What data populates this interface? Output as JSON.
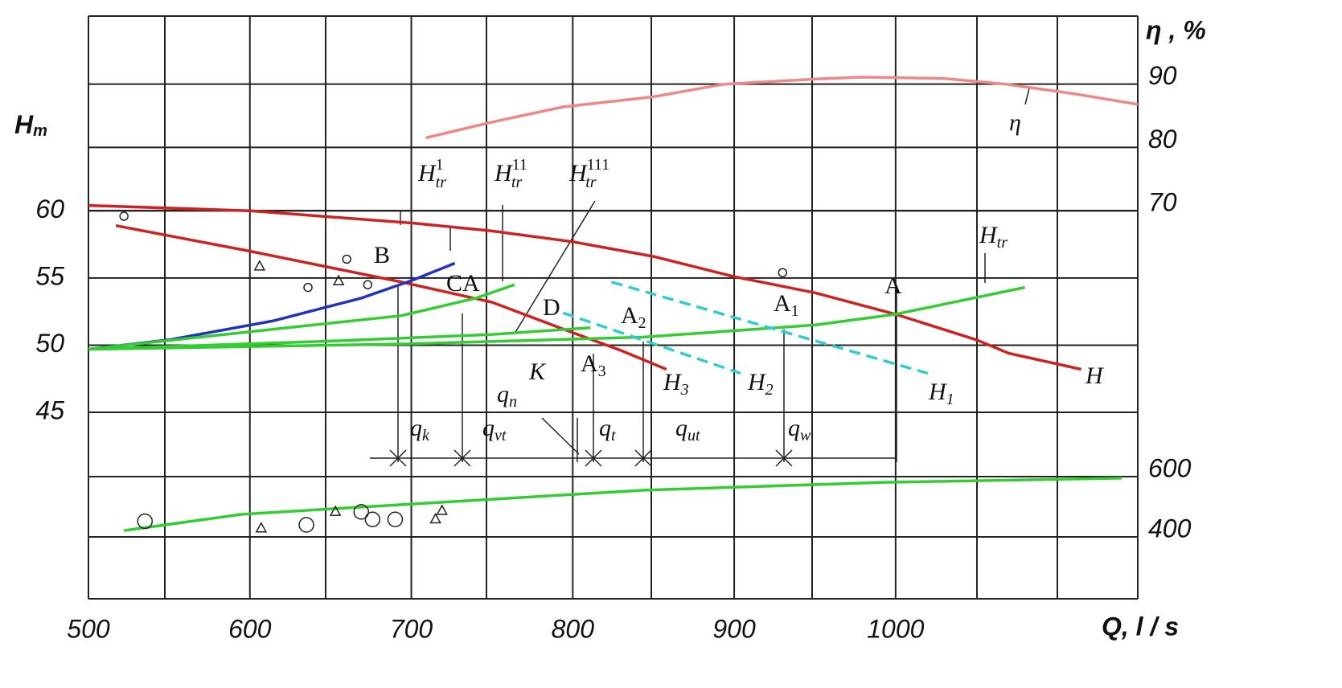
{
  "chart_data": {
    "type": "line",
    "x_label": "Q, l / s",
    "y_label": {
      "text": "H",
      "sub": "m"
    },
    "y2_label": "η , %",
    "xlim": [
      500,
      1150
    ],
    "xticks": [
      500,
      600,
      700,
      800,
      900,
      1000
    ],
    "ylim": [
      45,
      74.5
    ],
    "yticks": [
      60,
      55,
      50,
      45
    ],
    "y2lim": [
      70,
      100
    ],
    "y2ticks": [
      90,
      80,
      70
    ],
    "y3lim": [
      200,
      800
    ],
    "y3ticks": [
      600,
      400
    ],
    "series": [
      {
        "color": "#cc2222",
        "axis": "y",
        "x": [
          500,
          600,
          700,
          750,
          800,
          850,
          900,
          950,
          1000,
          1050,
          1070,
          1115
        ],
        "values": [
          60.4,
          60,
          59.1,
          58.5,
          57.7,
          56.6,
          55.1,
          53.9,
          52.3,
          50.4,
          49.4,
          48.2
        ]
      },
      {
        "color": "#cc2222",
        "axis": "y",
        "x": [
          517,
          600,
          694,
          750,
          794,
          830,
          858
        ],
        "values": [
          58.9,
          57.0,
          54.7,
          53.2,
          51.2,
          49.6,
          48.2
        ]
      },
      {
        "color": "#ee8888",
        "axis": "y2",
        "x": [
          709,
          750,
          794,
          850,
          894,
          950,
          979,
          1030,
          1068,
          1110,
          1150
        ],
        "values": [
          81.5,
          84,
          86.4,
          88,
          90,
          90.8,
          91.1,
          90.9,
          90,
          88.5,
          86.8
        ]
      },
      {
        "color": "#2233bb",
        "axis": "y",
        "x": [
          500,
          550,
          614,
          669,
          700,
          727
        ],
        "values": [
          49.7,
          50.4,
          51.8,
          53.5,
          54.8,
          56.1
        ]
      },
      {
        "color": "#33cc33",
        "axis": "y",
        "x": [
          500,
          600,
          694,
          740,
          764
        ],
        "values": [
          49.7,
          51,
          52.2,
          53.5,
          54.5
        ]
      },
      {
        "color": "#33cc33",
        "axis": "y",
        "x": [
          500,
          650,
          750,
          811
        ],
        "values": [
          49.7,
          50.3,
          50.8,
          51.3
        ]
      },
      {
        "color": "#33cc33",
        "axis": "y",
        "x": [
          500,
          700,
          844,
          950,
          1000,
          1080
        ],
        "values": [
          49.7,
          50.1,
          50.6,
          51.5,
          52.3,
          54.3
        ]
      },
      {
        "color": "#33cccc",
        "axis": "y",
        "dashed": true,
        "x": [
          824,
          1020
        ],
        "values": [
          54.7,
          47.9
        ]
      },
      {
        "color": "#33cccc",
        "axis": "y",
        "dashed": true,
        "x": [
          794,
          904
        ],
        "values": [
          52.4,
          47.9
        ]
      },
      {
        "color": "#33cc33",
        "axis": "y3",
        "x": [
          522,
          595,
          694,
          844,
          993,
          1140
        ],
        "values": [
          421,
          475,
          507,
          555,
          581,
          595
        ]
      }
    ],
    "circles_h": {
      "x": [
        522,
        660,
        636,
        673,
        930
      ],
      "values": [
        59.6,
        56.4,
        54.3,
        54.5,
        55.4
      ]
    },
    "triangles_h": {
      "x": [
        606,
        655
      ],
      "values": [
        55.9,
        54.8
      ]
    },
    "circles_p": {
      "x": [
        535,
        635,
        669,
        676,
        690
      ],
      "values": [
        452,
        440,
        483,
        458,
        458
      ]
    },
    "triangles_p": {
      "x": [
        653,
        719,
        607,
        715
      ],
      "values": [
        485,
        488,
        430,
        460
      ]
    },
    "annotations": [
      {
        "text": "H",
        "sub": "tr",
        "sup": "1"
      },
      {
        "text": "H",
        "sub": "tr",
        "sup": "11"
      },
      {
        "text": "H",
        "sub": "tr",
        "sup": "111"
      },
      {
        "text": "H",
        "sub": "tr"
      },
      {
        "text": "B"
      },
      {
        "text": "CA"
      },
      {
        "text": "D"
      },
      {
        "text": "A",
        "sub": "2"
      },
      {
        "text": "A",
        "sub": "1"
      },
      {
        "text": "A",
        "sub": "3"
      },
      {
        "text": "A"
      },
      {
        "text": "K"
      },
      {
        "text": "q",
        "sub": "n"
      },
      {
        "text": "q",
        "sub": "k"
      },
      {
        "text": "q",
        "sub": "vt"
      },
      {
        "text": "q",
        "sub": "t"
      },
      {
        "text": "q",
        "sub": "ut"
      },
      {
        "text": "q",
        "sub": "w"
      },
      {
        "text": "H",
        "sub": "3"
      },
      {
        "text": "H",
        "sub": "2"
      },
      {
        "text": "H",
        "sub": "1"
      },
      {
        "text": "H"
      },
      {
        "text": "η"
      }
    ]
  }
}
